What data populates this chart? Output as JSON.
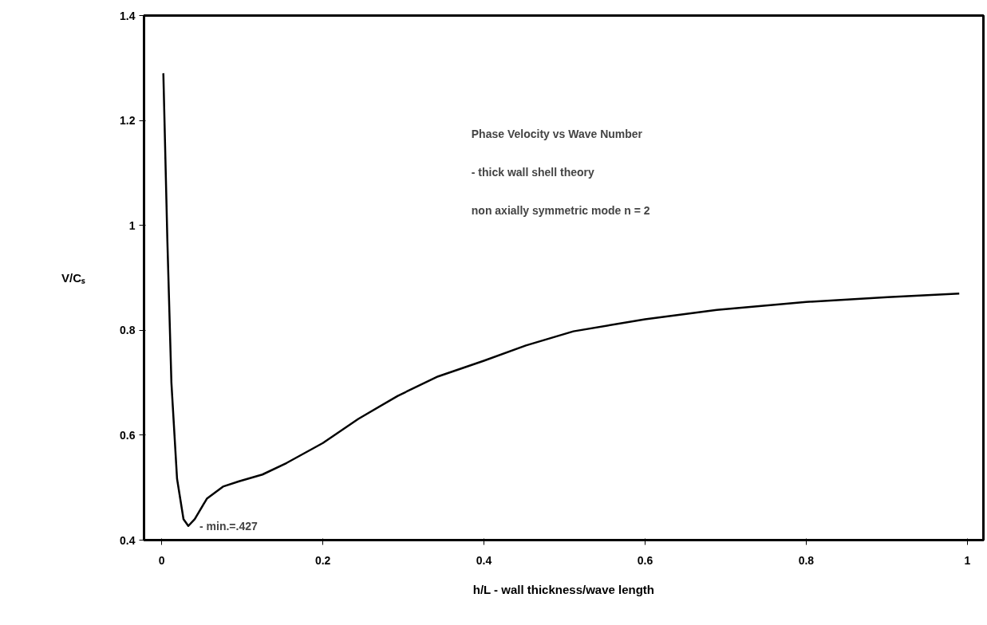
{
  "chart_data": {
    "type": "line",
    "xlabel": "h/L - wall thickness/wave length",
    "ylabel": "V/Cₛ",
    "x": [
      0.002,
      0.007,
      0.012,
      0.019,
      0.027,
      0.033,
      0.041,
      0.056,
      0.076,
      0.096,
      0.125,
      0.155,
      0.2,
      0.244,
      0.293,
      0.343,
      0.4,
      0.452,
      0.511,
      0.6,
      0.689,
      0.8,
      0.901,
      0.99
    ],
    "series": [
      {
        "color": "#000000",
        "values": [
          1.29,
          0.97,
          0.7,
          0.517,
          0.44,
          0.427,
          0.44,
          0.479,
          0.502,
          0.512,
          0.525,
          0.547,
          0.585,
          0.631,
          0.675,
          0.712,
          0.742,
          0.771,
          0.798,
          0.821,
          0.839,
          0.854,
          0.863,
          0.87
        ]
      }
    ],
    "xlim": [
      -0.022,
      1.02
    ],
    "ylim": [
      0.4,
      1.4
    ],
    "xticks": [
      0,
      0.2,
      0.4,
      0.6,
      0.8,
      1
    ],
    "yticks": [
      0.4,
      0.6,
      0.8,
      1,
      1.2,
      1.4
    ],
    "grid": false,
    "marker": "none",
    "line_style": "solid",
    "annotations": [
      "Phase Velocity vs Wave Number",
      "- thick wall shell theory",
      "non axially symmetric mode n = 2",
      {
        "text": "- min.=.427",
        "x": 0.033,
        "y": 0.427
      }
    ]
  }
}
